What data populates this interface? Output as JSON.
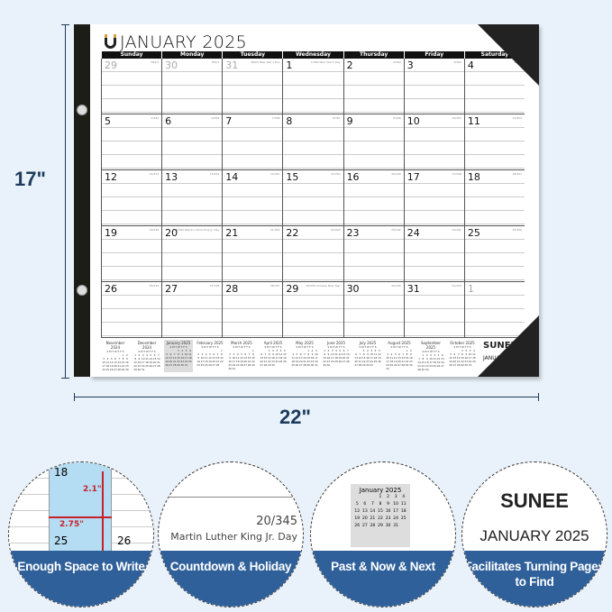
{
  "dimensions": {
    "height": "17\"",
    "width": "22\""
  },
  "calendar": {
    "title": "JANUARY 2025",
    "weekdays": [
      "Sunday",
      "Monday",
      "Tuesday",
      "Wednesday",
      "Thursday",
      "Friday",
      "Saturday"
    ],
    "days": [
      {
        "n": "29",
        "cd": "364/2",
        "out": true
      },
      {
        "n": "30",
        "cd": "365/1",
        "out": true
      },
      {
        "n": "31",
        "cd": "366/0 New Year's Eve",
        "out": true
      },
      {
        "n": "1",
        "cd": "1/364 New Year's Day"
      },
      {
        "n": "2",
        "cd": "2/363"
      },
      {
        "n": "3",
        "cd": "3/362"
      },
      {
        "n": "4",
        "cd": "4/361"
      },
      {
        "n": "5",
        "cd": "5/360"
      },
      {
        "n": "6",
        "cd": "6/359"
      },
      {
        "n": "7",
        "cd": "7/358"
      },
      {
        "n": "8",
        "cd": "8/357"
      },
      {
        "n": "9",
        "cd": "9/356"
      },
      {
        "n": "10",
        "cd": "10/355"
      },
      {
        "n": "11",
        "cd": "11/354"
      },
      {
        "n": "12",
        "cd": "12/353"
      },
      {
        "n": "13",
        "cd": "13/352"
      },
      {
        "n": "14",
        "cd": "14/351"
      },
      {
        "n": "15",
        "cd": "15/350"
      },
      {
        "n": "16",
        "cd": "16/349"
      },
      {
        "n": "17",
        "cd": "17/348"
      },
      {
        "n": "18",
        "cd": "18/347"
      },
      {
        "n": "19",
        "cd": "19/346"
      },
      {
        "n": "20",
        "cd": "20/345 Martin Luther King Jr. Day"
      },
      {
        "n": "21",
        "cd": "21/344"
      },
      {
        "n": "22",
        "cd": "22/343"
      },
      {
        "n": "23",
        "cd": "23/342"
      },
      {
        "n": "24",
        "cd": "24/341"
      },
      {
        "n": "25",
        "cd": "25/340"
      },
      {
        "n": "26",
        "cd": "26/339"
      },
      {
        "n": "27",
        "cd": "27/338"
      },
      {
        "n": "28",
        "cd": "28/337"
      },
      {
        "n": "29",
        "cd": "29/336 Chinese New Year"
      },
      {
        "n": "30",
        "cd": "30/335"
      },
      {
        "n": "31",
        "cd": "31/334"
      },
      {
        "n": "1",
        "cd": "",
        "out": true
      }
    ],
    "mini_header": "S M T W T F S",
    "minis": [
      {
        "name": "November 2024",
        "start": 5,
        "len": 30
      },
      {
        "name": "December 2024",
        "start": 0,
        "len": 31
      },
      {
        "name": "January 2025",
        "start": 3,
        "len": 31,
        "current": true
      },
      {
        "name": "February 2025",
        "start": 6,
        "len": 28
      },
      {
        "name": "March 2025",
        "start": 6,
        "len": 31
      },
      {
        "name": "April 2025",
        "start": 2,
        "len": 30
      },
      {
        "name": "May 2025",
        "start": 4,
        "len": 31
      },
      {
        "name": "June 2025",
        "start": 0,
        "len": 30
      },
      {
        "name": "July 2025",
        "start": 2,
        "len": 31
      },
      {
        "name": "August 2025",
        "start": 5,
        "len": 31
      },
      {
        "name": "September 2025",
        "start": 1,
        "len": 30
      },
      {
        "name": "October 2025",
        "start": 3,
        "len": 31
      }
    ],
    "brand": "SUNEE",
    "brand_month": "JANUARY"
  },
  "features": [
    {
      "label": "Enough Space to Write",
      "detail": {
        "d1": "18",
        "d2": "25",
        "d3": "26",
        "h": "2.1\"",
        "w": "2.75\""
      }
    },
    {
      "label": "Countdown & Holiday",
      "detail": {
        "count": "20/345",
        "holiday": "Martin Luther King Jr. Day"
      }
    },
    {
      "label": "Past & Now & Next",
      "detail": {
        "month": "January 2025"
      }
    },
    {
      "label": "Facilitates Turning Pages to Find",
      "detail": {
        "brand": "SUNEE",
        "month": "JANUARY 2025"
      }
    }
  ],
  "colors": {
    "band": "#2f609a",
    "background": "#e9f2fa",
    "accent": "#d9a14a"
  }
}
